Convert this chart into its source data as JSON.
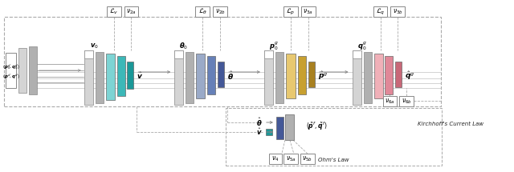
{
  "fig_width": 6.4,
  "fig_height": 2.15,
  "dpi": 100,
  "colors": {
    "gray_light": "#d4d4d4",
    "gray_mid": "#b0b0b0",
    "gray_dark": "#909090",
    "white": "#ffffff",
    "teal_light": "#7dd4d4",
    "teal_mid": "#3cb8b8",
    "teal_dark": "#1a9898",
    "blue_light": "#9aaac8",
    "blue_mid": "#6680b8",
    "blue_dark": "#445898",
    "gold_light": "#e8c870",
    "gold_mid": "#c8a030",
    "gold_dark": "#a88020",
    "pink_light": "#f0b0b8",
    "pink_mid": "#e08898",
    "pink_dark": "#c86878",
    "box_ec": "#888888",
    "bar_ec": "#666666",
    "arrow": "#888888",
    "dash": "#aaaaaa",
    "text": "#222222"
  }
}
